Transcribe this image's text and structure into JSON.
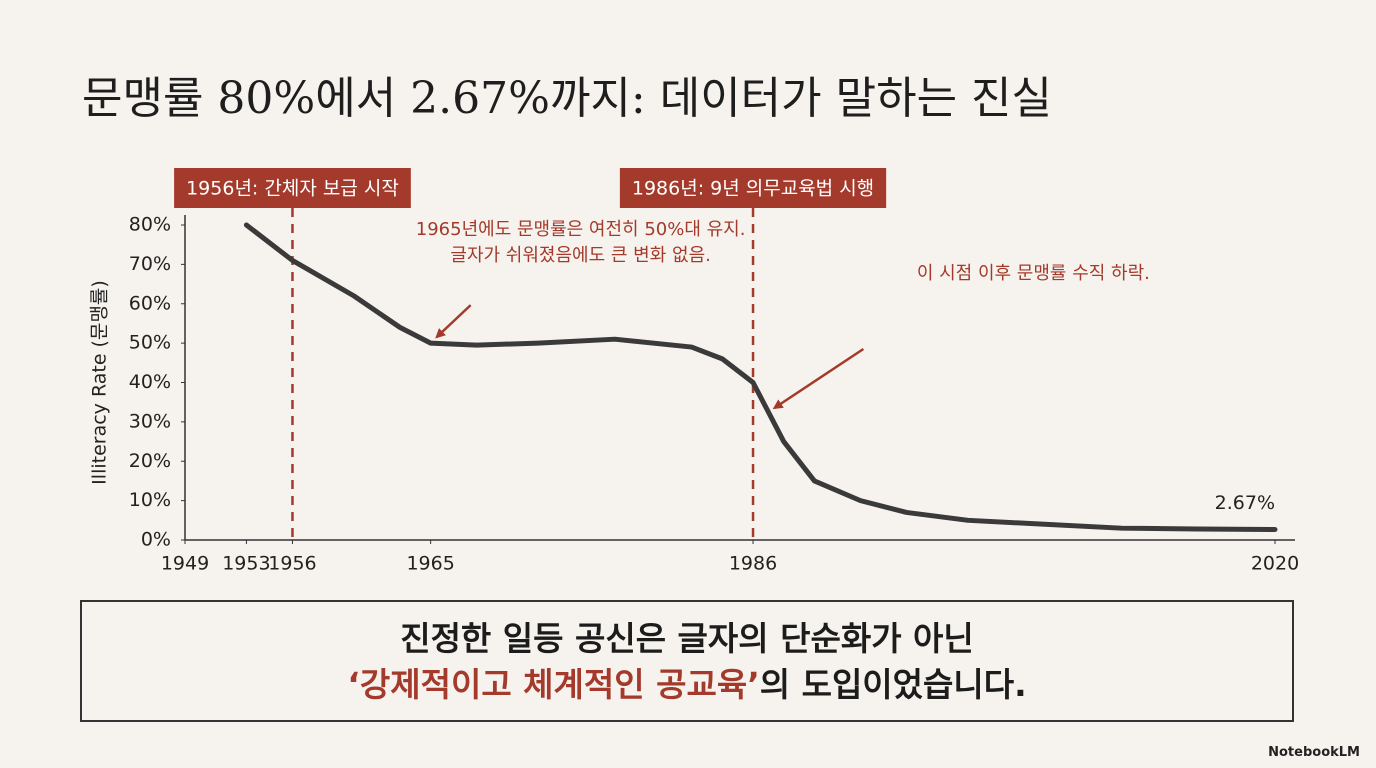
{
  "chart_data": {
    "type": "line",
    "title": "문맹률 80%에서 2.67%까지: 데이터가 말하는 진실",
    "y_label": "Illiteracy Rate (문맹률)",
    "x": [
      1953,
      1956,
      1960,
      1963,
      1965,
      1968,
      1972,
      1977,
      1982,
      1984,
      1986,
      1988,
      1990,
      1993,
      1996,
      2000,
      2005,
      2010,
      2015,
      2020
    ],
    "series": [
      {
        "name": "Illiteracy Rate",
        "color": "#3a3a3a",
        "values": [
          80,
          71,
          62,
          54,
          50,
          49.5,
          50,
          51,
          49,
          46,
          40,
          25,
          15,
          10,
          7,
          5,
          4,
          3,
          2.8,
          2.67
        ],
        "value_labels": [
          null,
          null,
          null,
          null,
          null,
          null,
          null,
          null,
          null,
          null,
          null,
          null,
          null,
          null,
          null,
          null,
          null,
          null,
          null,
          "2.67%"
        ]
      }
    ],
    "xlim": [
      1949,
      2020
    ],
    "xticks": [
      1949,
      1953,
      1956,
      1965,
      1986,
      2020
    ],
    "ylim": [
      0,
      80
    ],
    "yticks": [
      {
        "value": 0,
        "label": "0%"
      },
      {
        "value": 10,
        "label": "10%"
      },
      {
        "value": 20,
        "label": "20%"
      },
      {
        "value": 30,
        "label": "30%"
      },
      {
        "value": 40,
        "label": "40%"
      },
      {
        "value": 50,
        "label": "50%"
      },
      {
        "value": 60,
        "label": "60%"
      },
      {
        "value": 70,
        "label": "70%"
      },
      {
        "value": 80,
        "label": "80%"
      }
    ],
    "events": [
      {
        "x": 1956,
        "label": "1956년: 간체자 보급 시작"
      },
      {
        "x": 1986,
        "label": "1986년: 9년 의무교육법 시행"
      }
    ],
    "annotations": [
      {
        "x": 1965,
        "y": 50,
        "lines": [
          "1965년에도 문맹률은 여전히 50%대 유지.",
          "글자가 쉬워졌음에도 큰 변화 없음."
        ]
      },
      {
        "x": 1987,
        "y": 32,
        "lines": [
          "이 시점 이후 문맹률 수직 하락."
        ]
      }
    ],
    "accent_color": "#a43a2b"
  },
  "conclusion": {
    "line1": "진정한 일등 공신은 글자의 단순화가 아닌",
    "line2_highlight": "‘강제적이고 체계적인 공교육’",
    "line2_rest": "의 도입이었습니다."
  },
  "footer": "NotebookLM"
}
